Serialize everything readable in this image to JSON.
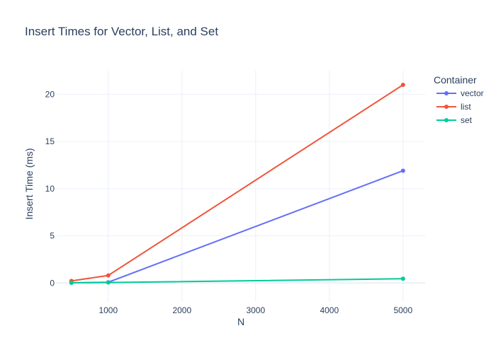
{
  "chart_data": {
    "type": "line",
    "title": "Insert Times for Vector, List, and Set",
    "xlabel": "N",
    "ylabel": "Insert Time (ms)",
    "legend_title": "Container",
    "legend_position": "right",
    "grid": true,
    "xlim": [
      300,
      5300
    ],
    "ylim": [
      -2,
      22.5
    ],
    "x_ticks": [
      1000,
      2000,
      3000,
      4000,
      5000
    ],
    "y_ticks": [
      0,
      5,
      10,
      15,
      20
    ],
    "x": [
      500,
      1000,
      5000
    ],
    "series": [
      {
        "name": "vector",
        "color": "#636efa",
        "values": [
          0.02,
          0.08,
          11.9
        ]
      },
      {
        "name": "list",
        "color": "#ef553b",
        "values": [
          0.22,
          0.8,
          21.0
        ]
      },
      {
        "name": "set",
        "color": "#00cc96",
        "values": [
          0.02,
          0.05,
          0.45
        ]
      }
    ]
  }
}
